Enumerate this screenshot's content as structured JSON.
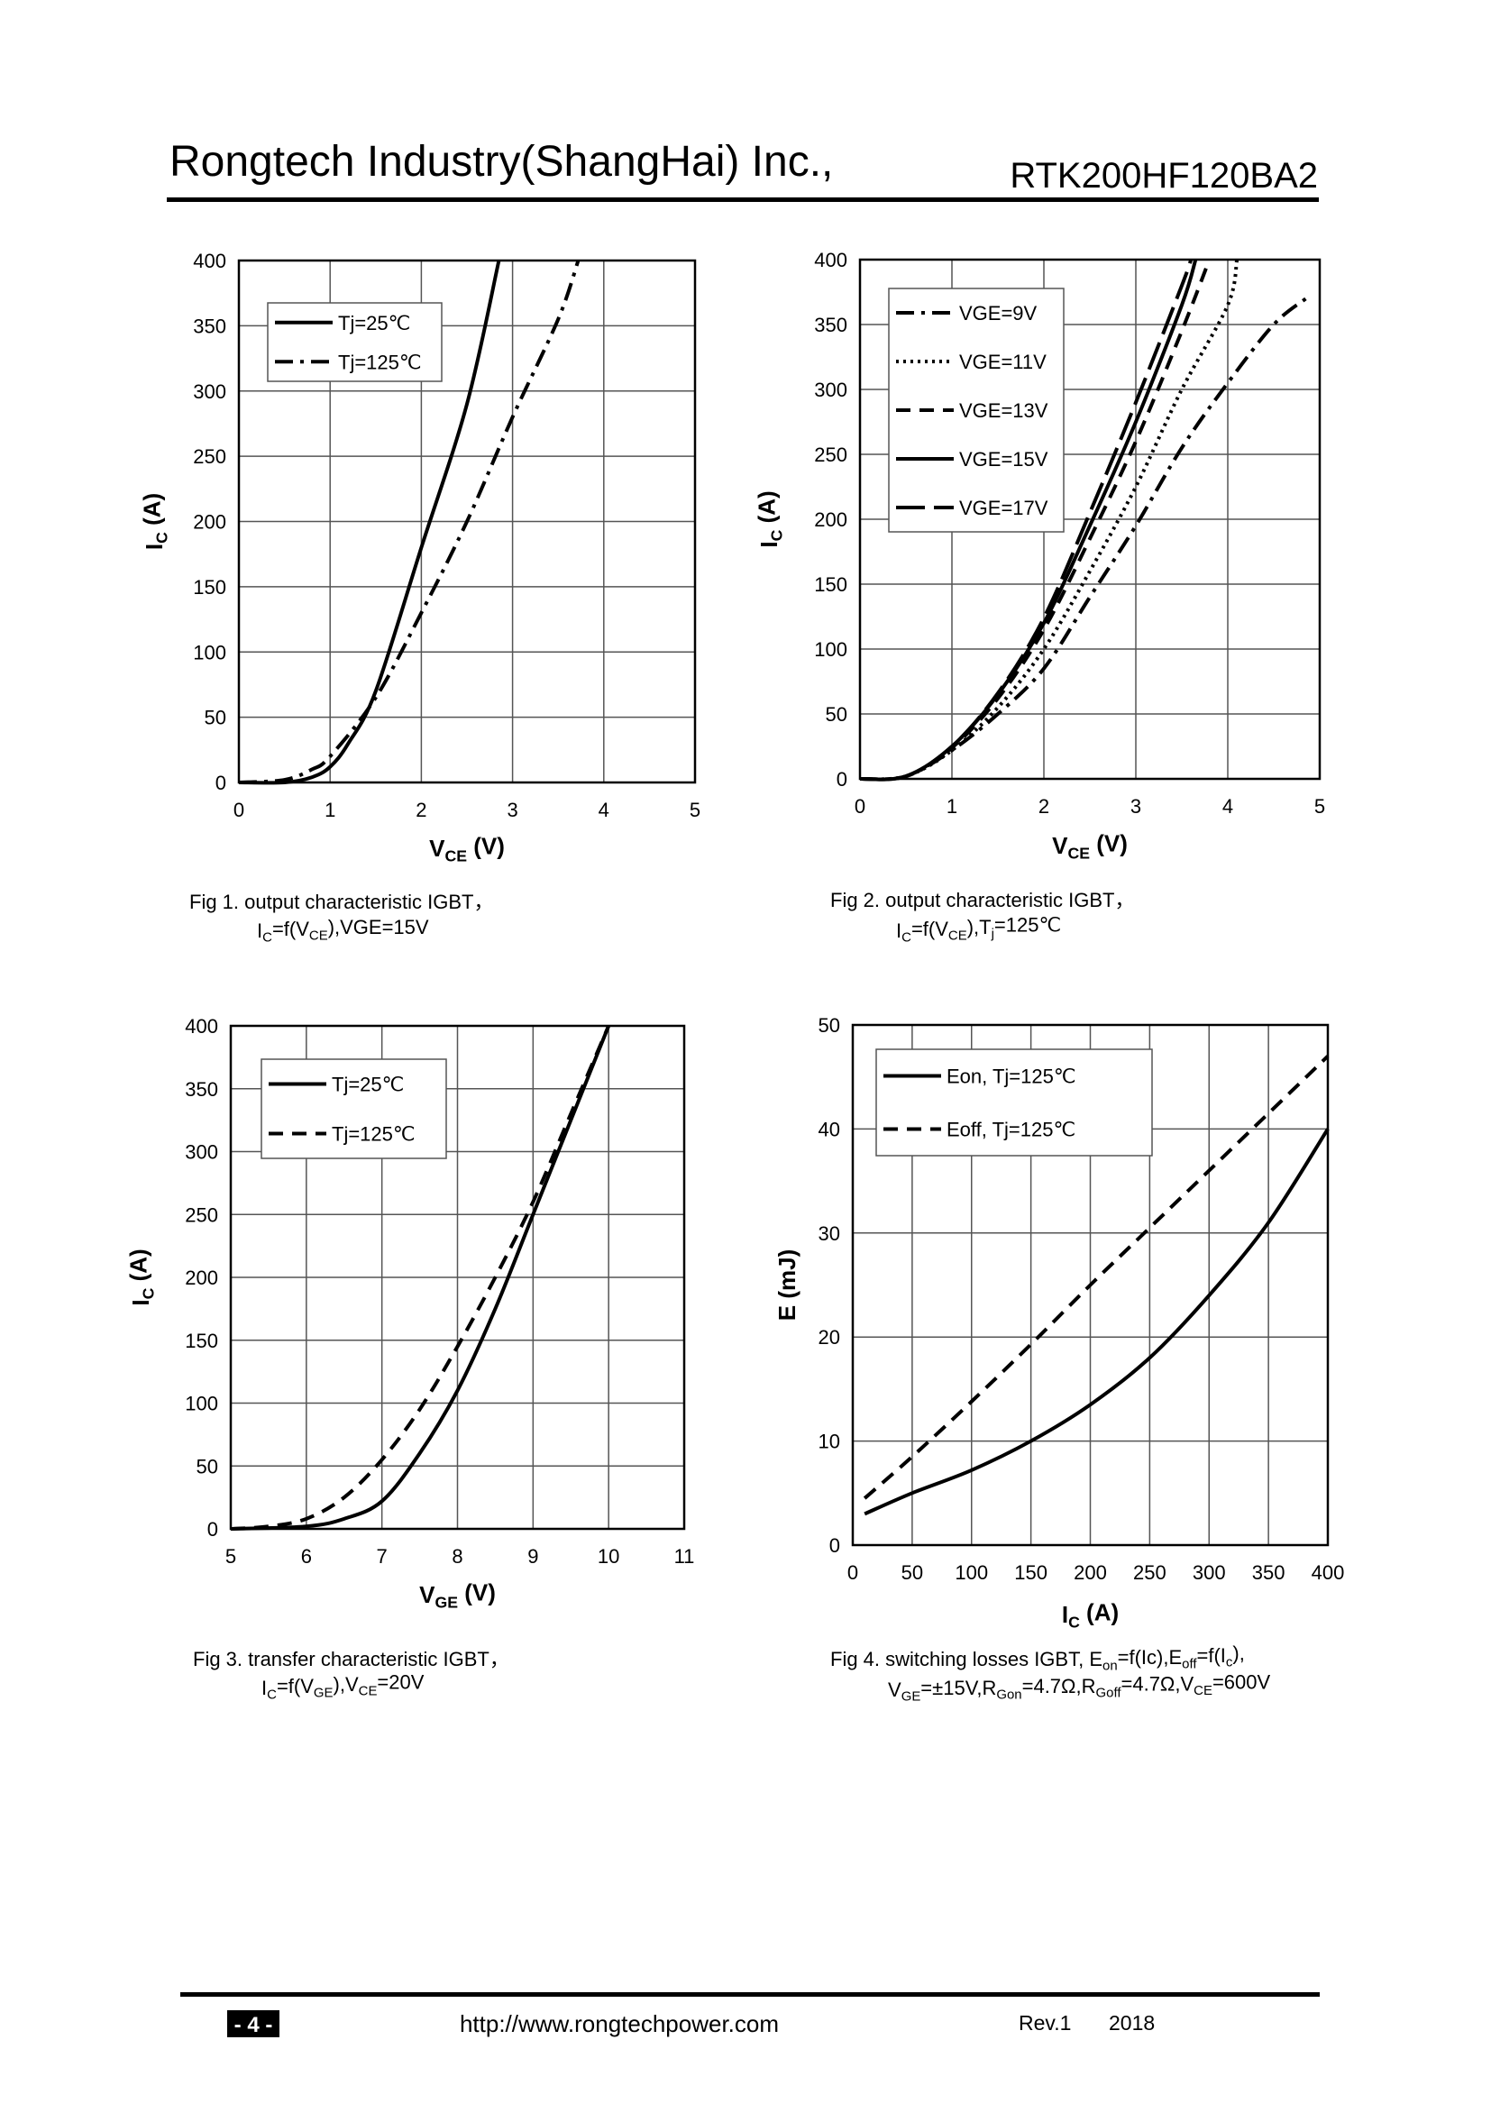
{
  "header": {
    "company": "Rongtech Industry(ShangHai) Inc.,",
    "part": "RTK200HF120BA2"
  },
  "chart_data": [
    {
      "type": "line",
      "grid": true,
      "xlabel": [
        "V",
        {
          "text": "CE",
          "sub": true
        },
        " (V)"
      ],
      "ylabel": [
        "I",
        {
          "text": "C",
          "sub": true
        },
        " (A)"
      ],
      "xlim": [
        0,
        5
      ],
      "ylim": [
        0,
        400
      ],
      "xticks": [
        0,
        1,
        2,
        3,
        4,
        5
      ],
      "yticks": [
        0,
        50,
        100,
        150,
        200,
        250,
        300,
        350,
        400
      ],
      "series": [
        {
          "name": "Tj=25℃",
          "color": "#000000",
          "dash": "solid",
          "x": [
            0,
            0.5,
            0.8,
            1,
            1.2,
            1.5,
            2,
            2.5,
            2.85
          ],
          "values": [
            0,
            0,
            4,
            12,
            30,
            70,
            180,
            290,
            400
          ]
        },
        {
          "name": "Tj=125℃",
          "color": "#000000",
          "dash": "dashdot",
          "x": [
            0,
            0.5,
            0.8,
            1,
            1.5,
            2,
            2.5,
            3,
            3.5,
            3.72
          ],
          "values": [
            0,
            2,
            10,
            20,
            65,
            130,
            200,
            280,
            355,
            400
          ]
        }
      ],
      "caption": [
        [
          "Fig 1. output characteristic IGBT，"
        ],
        [
          "I",
          {
            "text": "C",
            "sub": true
          },
          "=f(V",
          {
            "text": "CE",
            "sub": true
          },
          "),VGE=15V"
        ]
      ]
    },
    {
      "type": "line",
      "grid": true,
      "xlabel": [
        "V",
        {
          "text": "CE",
          "sub": true
        },
        " (V)"
      ],
      "ylabel": [
        "I",
        {
          "text": "C",
          "sub": true
        },
        " (A)"
      ],
      "xlim": [
        0,
        5
      ],
      "ylim": [
        0,
        400
      ],
      "xticks": [
        0,
        1,
        2,
        3,
        4,
        5
      ],
      "yticks": [
        0,
        50,
        100,
        150,
        200,
        250,
        300,
        350,
        400
      ],
      "series": [
        {
          "name": "VGE=9V",
          "color": "#000000",
          "dash": "dashdot",
          "x": [
            0,
            0.5,
            1,
            1.5,
            2,
            2.5,
            3,
            3.5,
            4,
            4.5,
            4.85
          ],
          "values": [
            0,
            2,
            22,
            50,
            85,
            140,
            195,
            255,
            305,
            350,
            370
          ]
        },
        {
          "name": "VGE=11V",
          "color": "#000000",
          "dash": "dotted",
          "x": [
            0,
            0.5,
            1,
            1.5,
            2,
            2.5,
            3,
            3.5,
            4,
            4.1
          ],
          "values": [
            0,
            2,
            22,
            55,
            100,
            160,
            225,
            300,
            365,
            400
          ]
        },
        {
          "name": "VGE=13V",
          "color": "#000000",
          "dash": "dashed",
          "x": [
            0,
            0.5,
            1,
            1.5,
            2,
            2.5,
            3,
            3.5,
            3.8
          ],
          "values": [
            0,
            2,
            24,
            62,
            115,
            185,
            260,
            345,
            400
          ]
        },
        {
          "name": "VGE=15V",
          "color": "#000000",
          "dash": "solid",
          "x": [
            0,
            0.5,
            1,
            1.5,
            2,
            2.5,
            3,
            3.5,
            3.65
          ],
          "values": [
            0,
            2,
            25,
            65,
            120,
            195,
            275,
            365,
            400
          ]
        },
        {
          "name": "VGE=17V",
          "color": "#000000",
          "dash": "longdash",
          "x": [
            0,
            0.5,
            1,
            1.5,
            2,
            2.5,
            3,
            3.5,
            3.6
          ],
          "values": [
            0,
            2,
            25,
            66,
            124,
            205,
            290,
            380,
            400
          ]
        }
      ],
      "caption": [
        [
          "Fig 2. output characteristic IGBT，"
        ],
        [
          "I",
          {
            "text": "C",
            "sub": true
          },
          "=f(V",
          {
            "text": "CE",
            "sub": true
          },
          "),T",
          {
            "text": "j",
            "sub": true
          },
          "=125℃"
        ]
      ]
    },
    {
      "type": "line",
      "grid": true,
      "xlabel": [
        "V",
        {
          "text": "GE",
          "sub": true
        },
        " (V)"
      ],
      "ylabel": [
        "I",
        {
          "text": "C",
          "sub": true
        },
        " (A)"
      ],
      "xlim": [
        5,
        11
      ],
      "ylim": [
        0,
        400
      ],
      "xticks": [
        5,
        6,
        7,
        8,
        9,
        10,
        11
      ],
      "yticks": [
        0,
        50,
        100,
        150,
        200,
        250,
        300,
        350,
        400
      ],
      "series": [
        {
          "name": "Tj=25℃",
          "color": "#000000",
          "dash": "solid",
          "x": [
            5,
            6,
            6.5,
            7,
            7.5,
            8,
            8.5,
            9,
            9.5,
            10
          ],
          "values": [
            0,
            2,
            8,
            22,
            60,
            110,
            175,
            250,
            325,
            400
          ]
        },
        {
          "name": "Tj=125℃",
          "color": "#000000",
          "dash": "dashed",
          "x": [
            5,
            5.5,
            6,
            6.5,
            7,
            7.5,
            8,
            8.5,
            9,
            9.5,
            10
          ],
          "values": [
            0,
            2,
            8,
            25,
            55,
            95,
            145,
            200,
            260,
            330,
            400
          ]
        }
      ],
      "caption": [
        [
          "Fig 3. transfer characteristic IGBT，"
        ],
        [
          "I",
          {
            "text": "C",
            "sub": true
          },
          "=f(V",
          {
            "text": "GE",
            "sub": true
          },
          "),V",
          {
            "text": "CE",
            "sub": true
          },
          "=20V"
        ]
      ]
    },
    {
      "type": "line",
      "grid": true,
      "xlabel": [
        "I",
        {
          "text": "C",
          "sub": true
        },
        " (A)"
      ],
      "ylabel": [
        "E (mJ)"
      ],
      "xlim": [
        0,
        400
      ],
      "ylim": [
        0,
        50
      ],
      "xticks": [
        0,
        50,
        100,
        150,
        200,
        250,
        300,
        350,
        400
      ],
      "yticks": [
        0,
        10,
        20,
        30,
        40,
        50
      ],
      "series": [
        {
          "name": "Eon, Tj=125℃",
          "color": "#000000",
          "dash": "solid",
          "x": [
            10,
            50,
            100,
            150,
            200,
            250,
            300,
            350,
            400
          ],
          "values": [
            3,
            5,
            7.2,
            10,
            13.5,
            18,
            24,
            31,
            40
          ]
        },
        {
          "name": "Eoff, Tj=125℃",
          "color": "#000000",
          "dash": "dashed",
          "x": [
            10,
            50,
            100,
            150,
            200,
            250,
            300,
            350,
            400
          ],
          "values": [
            4.5,
            8.5,
            13.8,
            19.3,
            25,
            30.5,
            36,
            41.5,
            47
          ]
        }
      ],
      "caption": [
        [
          "Fig 4. switching losses IGBT, E",
          {
            "text": "on",
            "sub": true
          },
          "=f(Ic),E",
          {
            "text": "off",
            "sub": true
          },
          "=f(I",
          {
            "text": "c",
            "sub": true
          },
          "),"
        ],
        [
          "V",
          {
            "text": "GE",
            "sub": true
          },
          "=±15V,R",
          {
            "text": "Gon",
            "sub": true
          },
          "=4.7Ω,R",
          {
            "text": "Goff",
            "sub": true
          },
          "=4.7Ω,V",
          {
            "text": "CE",
            "sub": true
          },
          "=600V"
        ]
      ]
    }
  ],
  "footer": {
    "page": "- 4 -",
    "url": "http://www.rongtechpower.com",
    "rev": "Rev.1",
    "year": "2018"
  }
}
